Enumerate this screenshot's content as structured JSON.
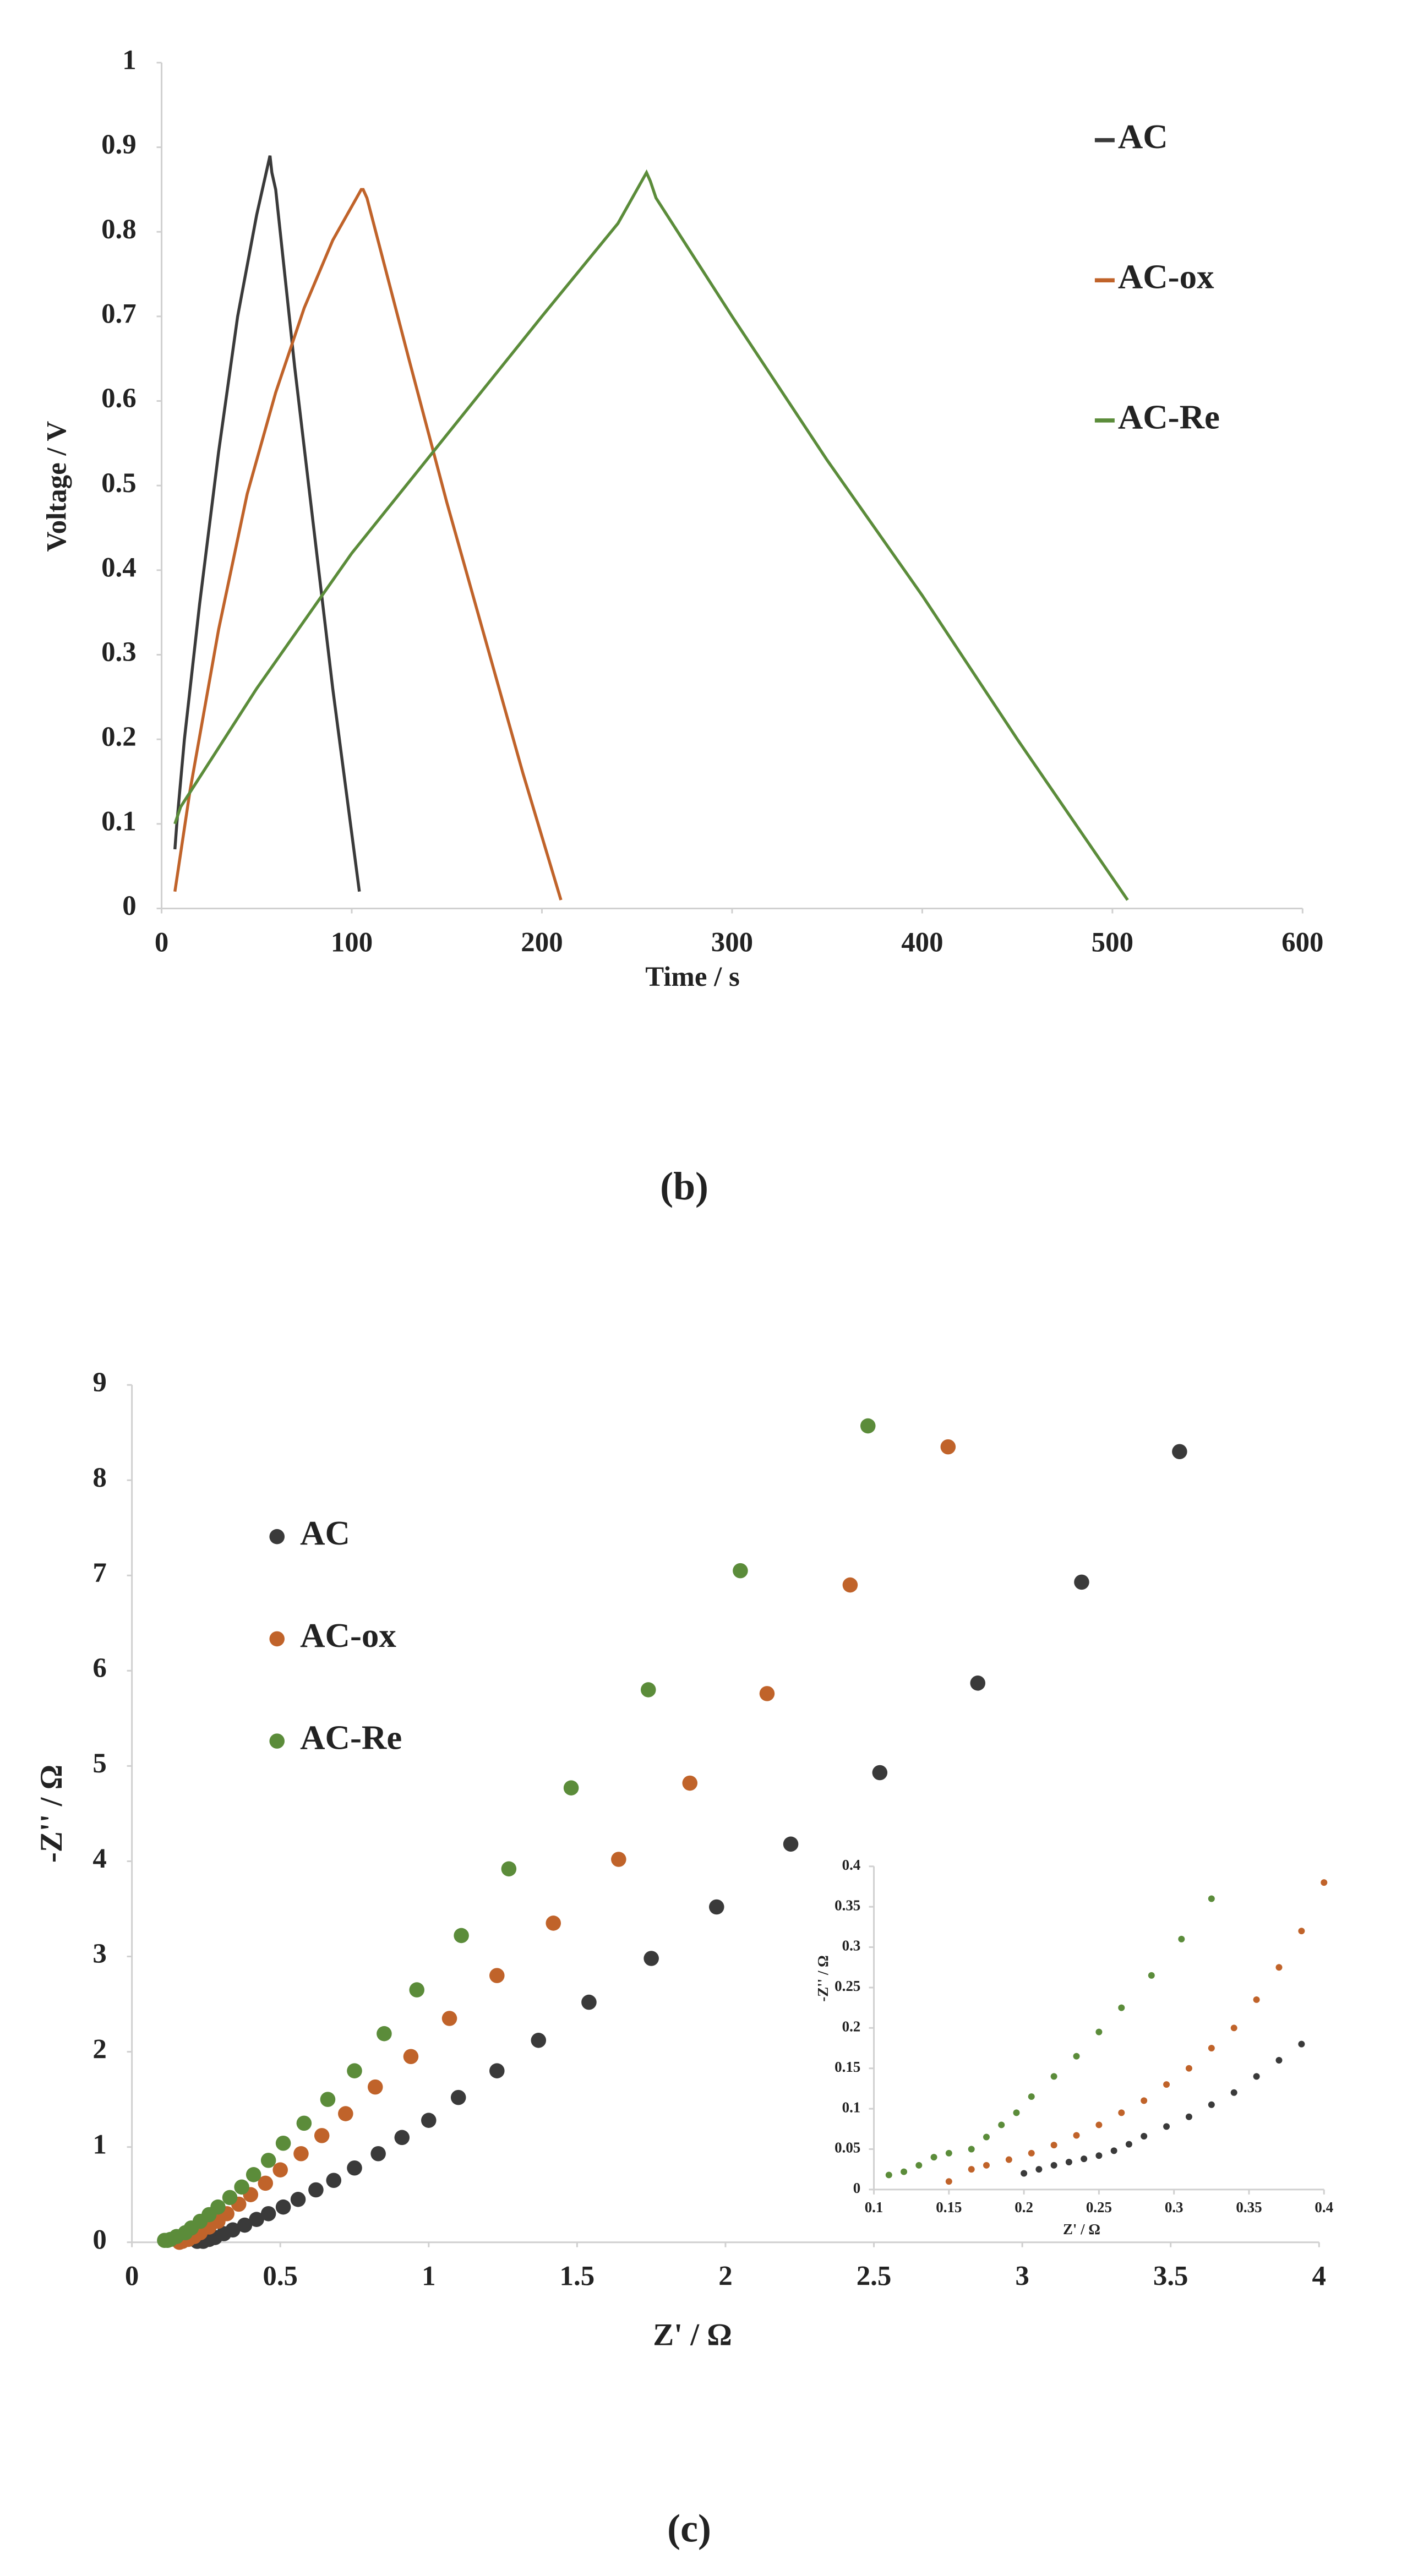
{
  "chart_data": [
    {
      "type": "line",
      "caption": "(b)",
      "xlabel": "Time / s",
      "ylabel": "Voltage / V",
      "xlim": [
        0,
        600
      ],
      "xticks": [
        0,
        100,
        200,
        300,
        400,
        500,
        600
      ],
      "ylim": [
        0,
        1
      ],
      "yticks": [
        0,
        0.1,
        0.2,
        0.3,
        0.4,
        0.5,
        0.6,
        0.7,
        0.8,
        0.9,
        1
      ],
      "series": [
        {
          "name": "AC",
          "color": "#3a3a3a",
          "x": [
            7,
            8,
            12,
            20,
            30,
            40,
            50,
            57,
            58,
            60,
            70,
            80,
            90,
            104
          ],
          "values": [
            0.07,
            0.1,
            0.2,
            0.36,
            0.54,
            0.7,
            0.82,
            0.89,
            0.87,
            0.85,
            0.64,
            0.45,
            0.26,
            0.02
          ]
        },
        {
          "name": "AC-ox",
          "color": "#c0632a",
          "x": [
            7,
            15,
            30,
            45,
            60,
            75,
            90,
            105,
            106,
            108,
            130,
            150,
            170,
            190,
            210
          ],
          "values": [
            0.02,
            0.14,
            0.33,
            0.49,
            0.61,
            0.71,
            0.79,
            0.85,
            0.85,
            0.84,
            0.65,
            0.48,
            0.32,
            0.16,
            0.01
          ]
        },
        {
          "name": "AC-Re",
          "color": "#5b8c3a",
          "x": [
            7,
            10,
            50,
            100,
            150,
            200,
            240,
            255,
            257,
            260,
            300,
            350,
            400,
            450,
            508
          ],
          "values": [
            0.1,
            0.12,
            0.26,
            0.42,
            0.56,
            0.7,
            0.81,
            0.87,
            0.86,
            0.84,
            0.7,
            0.53,
            0.37,
            0.2,
            0.01
          ]
        }
      ]
    },
    {
      "type": "scatter",
      "caption": "(c)",
      "xlabel": "Z' / Ω",
      "ylabel": "-Z'' / Ω",
      "xlim": [
        0,
        4
      ],
      "xticks": [
        0,
        0.5,
        1,
        1.5,
        2,
        2.5,
        3,
        3.5,
        4
      ],
      "ylim": [
        0,
        9
      ],
      "yticks": [
        0,
        1,
        2,
        3,
        4,
        5,
        6,
        7,
        8,
        9
      ],
      "series": [
        {
          "name": "AC",
          "color": "#3a3a3a",
          "x": [
            3.53,
            3.2,
            2.85,
            2.52,
            2.22,
            1.97,
            1.75,
            1.54,
            1.37,
            1.23,
            1.1,
            1.0,
            0.91,
            0.83,
            0.75,
            0.68,
            0.62,
            0.56,
            0.51,
            0.46,
            0.42,
            0.38,
            0.34,
            0.31,
            0.28,
            0.26,
            0.24,
            0.22
          ],
          "values": [
            8.3,
            6.93,
            5.87,
            4.93,
            4.18,
            3.52,
            2.98,
            2.52,
            2.12,
            1.8,
            1.52,
            1.28,
            1.1,
            0.93,
            0.78,
            0.65,
            0.55,
            0.45,
            0.37,
            0.3,
            0.24,
            0.18,
            0.13,
            0.09,
            0.05,
            0.03,
            0.01,
            0.01
          ]
        },
        {
          "name": "AC-ox",
          "color": "#c0632a",
          "x": [
            2.75,
            2.42,
            2.14,
            1.88,
            1.64,
            1.42,
            1.23,
            1.07,
            0.94,
            0.82,
            0.72,
            0.64,
            0.57,
            0.5,
            0.45,
            0.4,
            0.36,
            0.32,
            0.29,
            0.26,
            0.23,
            0.21,
            0.19,
            0.17,
            0.16
          ],
          "values": [
            8.35,
            6.9,
            5.76,
            4.82,
            4.02,
            3.35,
            2.8,
            2.35,
            1.95,
            1.63,
            1.35,
            1.12,
            0.93,
            0.76,
            0.62,
            0.5,
            0.4,
            0.3,
            0.22,
            0.16,
            0.1,
            0.06,
            0.03,
            0.01,
            0
          ]
        },
        {
          "name": "AC-Re",
          "color": "#5b8c3a",
          "x": [
            2.48,
            2.05,
            1.74,
            1.48,
            1.27,
            1.11,
            0.96,
            0.85,
            0.75,
            0.66,
            0.58,
            0.51,
            0.46,
            0.41,
            0.37,
            0.33,
            0.29,
            0.26,
            0.23,
            0.2,
            0.18,
            0.15,
            0.13,
            0.12,
            0.11
          ],
          "values": [
            8.57,
            7.05,
            5.8,
            4.77,
            3.92,
            3.22,
            2.65,
            2.19,
            1.8,
            1.5,
            1.25,
            1.04,
            0.86,
            0.71,
            0.58,
            0.47,
            0.37,
            0.29,
            0.22,
            0.15,
            0.1,
            0.06,
            0.03,
            0.02,
            0.02
          ]
        }
      ]
    },
    {
      "type": "scatter",
      "xlabel": "Z' / Ω",
      "ylabel": "-Z'' / Ω",
      "xlim": [
        0.1,
        0.4
      ],
      "xticks": [
        0.1,
        0.15,
        0.2,
        0.25,
        0.3,
        0.35,
        0.4
      ],
      "ylim": [
        0,
        0.4
      ],
      "yticks": [
        0,
        0.05,
        0.1,
        0.15,
        0.2,
        0.25,
        0.3,
        0.35,
        0.4
      ],
      "series": [
        {
          "color": "#3a3a3a",
          "x": [
            0.385,
            0.37,
            0.355,
            0.34,
            0.325,
            0.31,
            0.295,
            0.28,
            0.27,
            0.26,
            0.25,
            0.24,
            0.23,
            0.22,
            0.21,
            0.2
          ],
          "values": [
            0.18,
            0.16,
            0.14,
            0.12,
            0.105,
            0.09,
            0.078,
            0.066,
            0.056,
            0.048,
            0.042,
            0.038,
            0.034,
            0.03,
            0.025,
            0.02
          ]
        },
        {
          "color": "#c0632a",
          "x": [
            0.4,
            0.385,
            0.37,
            0.355,
            0.34,
            0.325,
            0.31,
            0.295,
            0.28,
            0.265,
            0.25,
            0.235,
            0.22,
            0.205,
            0.19,
            0.175,
            0.165,
            0.15
          ],
          "values": [
            0.38,
            0.32,
            0.275,
            0.235,
            0.2,
            0.175,
            0.15,
            0.13,
            0.11,
            0.095,
            0.08,
            0.067,
            0.055,
            0.045,
            0.037,
            0.03,
            0.025,
            0.01
          ]
        },
        {
          "color": "#5b8c3a",
          "x": [
            0.325,
            0.305,
            0.285,
            0.265,
            0.25,
            0.235,
            0.22,
            0.205,
            0.195,
            0.185,
            0.175,
            0.165,
            0.15,
            0.14,
            0.13,
            0.12,
            0.11
          ],
          "values": [
            0.36,
            0.31,
            0.265,
            0.225,
            0.195,
            0.165,
            0.14,
            0.115,
            0.095,
            0.08,
            0.065,
            0.05,
            0.045,
            0.04,
            0.03,
            0.022,
            0.018
          ]
        }
      ]
    }
  ]
}
